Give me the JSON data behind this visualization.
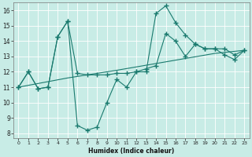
{
  "xlabel": "Humidex (Indice chaleur)",
  "bg_color": "#c8ece6",
  "grid_color": "#b0ddd6",
  "line_color": "#1a7a6e",
  "xlim": [
    -0.5,
    23.5
  ],
  "ylim": [
    7.7,
    16.5
  ],
  "yticks": [
    8,
    9,
    10,
    11,
    12,
    13,
    14,
    15,
    16
  ],
  "xticks": [
    0,
    1,
    2,
    3,
    4,
    5,
    6,
    7,
    8,
    9,
    10,
    11,
    12,
    13,
    14,
    15,
    16,
    17,
    18,
    19,
    20,
    21,
    22,
    23
  ],
  "curve1_x": [
    0,
    1,
    2,
    3,
    4,
    5,
    6,
    7,
    8,
    9,
    10,
    11,
    12,
    13,
    14,
    15,
    16,
    17,
    18,
    19,
    20,
    21,
    22,
    23
  ],
  "curve1_y": [
    11,
    12,
    10.9,
    11.0,
    14.3,
    15.3,
    8.5,
    8.2,
    8.4,
    10.0,
    11.5,
    11.0,
    12.0,
    12.0,
    15.8,
    16.3,
    15.2,
    14.4,
    13.8,
    13.5,
    13.5,
    13.1,
    12.8,
    13.4
  ],
  "curve2_x": [
    0,
    1,
    2,
    3,
    4,
    5,
    6,
    7,
    8,
    9,
    10,
    11,
    12,
    13,
    14,
    15,
    16,
    17,
    18,
    19,
    20,
    21,
    22,
    23
  ],
  "curve2_y": [
    11,
    12,
    10.9,
    11.0,
    14.3,
    15.3,
    11.9,
    11.8,
    11.8,
    11.8,
    11.9,
    11.9,
    12.0,
    12.2,
    12.4,
    14.5,
    14.0,
    13.0,
    13.8,
    13.5,
    13.5,
    13.5,
    13.1,
    13.4
  ],
  "curve3_x": [
    0,
    5,
    10,
    15,
    20,
    23
  ],
  "curve3_y": [
    11.0,
    11.6,
    12.1,
    12.65,
    13.2,
    13.4
  ]
}
